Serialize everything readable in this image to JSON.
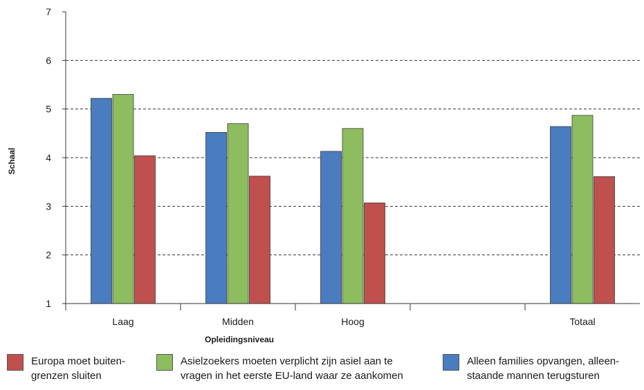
{
  "chart_data": {
    "type": "bar",
    "categories": [
      "Laag",
      "Midden",
      "Hoog",
      "",
      "Totaal"
    ],
    "series": [
      {
        "name": "Alleen families opvangen, alleen-\nstaande mannen terugsturen",
        "color": "#4a7cc0",
        "values": [
          5.22,
          4.52,
          4.13,
          null,
          4.64
        ]
      },
      {
        "name": "Asielzoekers moeten verplicht zijn asiel aan te\nvragen in het eerste EU-land waar ze aankomen",
        "color": "#8dbd5f",
        "values": [
          5.3,
          4.7,
          4.6,
          null,
          4.87
        ]
      },
      {
        "name": "Europa moet buiten-\ngrenzen sluiten",
        "color": "#c0504d",
        "values": [
          4.04,
          3.62,
          3.07,
          null,
          3.61
        ]
      }
    ],
    "title": "",
    "xlabel": "Opleidingsniveau",
    "ylabel": "Schaal",
    "ylim": [
      1,
      7
    ],
    "yticks": [
      1,
      2,
      3,
      4,
      5,
      6,
      7
    ],
    "grid": true,
    "legend_position": "bottom"
  },
  "legend_order": [
    2,
    1,
    0
  ]
}
